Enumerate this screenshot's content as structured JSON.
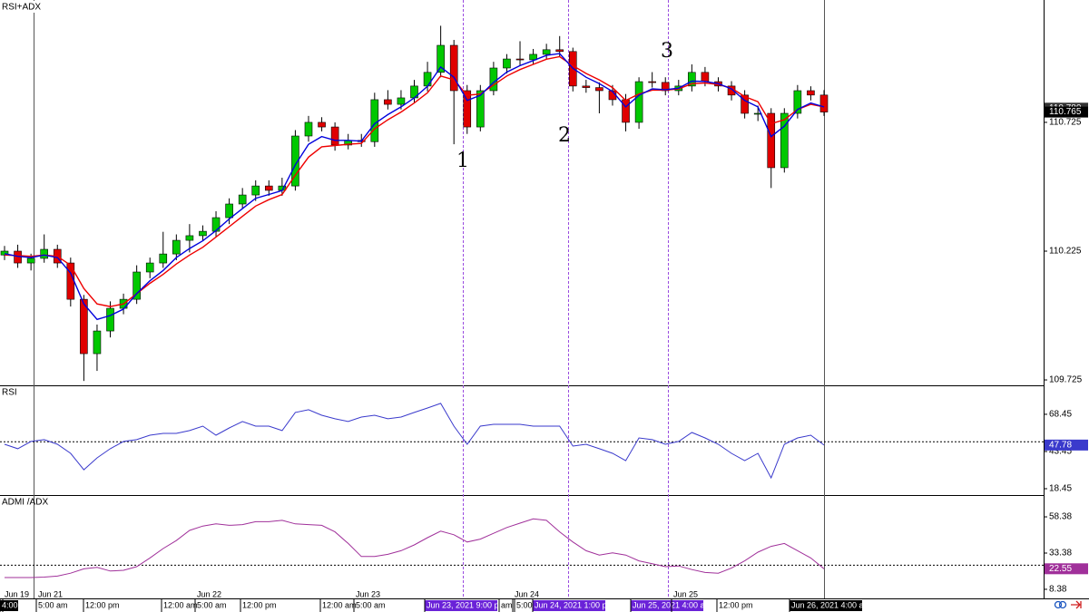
{
  "chart_data": [
    {
      "type": "candlestick",
      "title": "RSI+ADX",
      "open": [
        110.21,
        110.225,
        110.179,
        110.197,
        110.232,
        110.179,
        110.038,
        109.827,
        109.915,
        110.003,
        110.038,
        110.144,
        110.179,
        110.214,
        110.267,
        110.285,
        110.302,
        110.355,
        110.408,
        110.443,
        110.478,
        110.461,
        110.478,
        110.672,
        110.725,
        110.707,
        110.637,
        110.655,
        110.65,
        110.813,
        110.795,
        110.82,
        110.866,
        110.919,
        111.024,
        110.848,
        110.707,
        110.848,
        110.936,
        110.971,
        110.968,
        110.989,
        111.007,
        111.0,
        110.866,
        110.86,
        110.848,
        110.813,
        110.725,
        110.883,
        110.88,
        110.848,
        110.866,
        110.919,
        110.883,
        110.866,
        110.831,
        110.76,
        110.76,
        110.549,
        110.76,
        110.848,
        110.831
      ],
      "high": [
        110.245,
        110.25,
        110.215,
        110.29,
        110.25,
        110.2,
        110.055,
        109.94,
        110.03,
        110.06,
        110.17,
        110.2,
        110.3,
        110.29,
        110.33,
        110.325,
        110.38,
        110.43,
        110.47,
        110.5,
        110.5,
        110.51,
        110.695,
        110.75,
        110.745,
        110.725,
        110.68,
        110.68,
        110.84,
        110.85,
        110.85,
        110.89,
        110.96,
        111.1,
        111.045,
        110.87,
        110.87,
        110.96,
        110.99,
        111.04,
        111.01,
        111.03,
        111.06,
        111.015,
        110.89,
        110.88,
        110.87,
        110.835,
        110.9,
        110.92,
        110.9,
        110.89,
        110.95,
        110.94,
        110.9,
        110.885,
        110.85,
        110.79,
        110.78,
        110.78,
        110.87,
        110.865,
        110.85
      ],
      "low": [
        110.19,
        110.16,
        110.15,
        110.18,
        110.16,
        110.01,
        109.721,
        109.76,
        109.89,
        109.98,
        110.02,
        110.12,
        110.16,
        110.19,
        110.22,
        110.265,
        110.28,
        110.33,
        110.39,
        110.42,
        110.44,
        110.44,
        110.46,
        110.65,
        110.69,
        110.615,
        110.62,
        110.63,
        110.63,
        110.775,
        110.775,
        110.8,
        110.845,
        110.9,
        110.64,
        110.68,
        110.69,
        110.83,
        110.915,
        110.945,
        110.95,
        110.97,
        110.98,
        110.845,
        110.84,
        110.76,
        110.79,
        110.69,
        110.7,
        110.86,
        110.83,
        110.83,
        110.845,
        110.865,
        110.845,
        110.81,
        110.74,
        110.73,
        110.47,
        110.53,
        110.74,
        110.81,
        110.75
      ],
      "close": [
        110.225,
        110.179,
        110.197,
        110.232,
        110.179,
        110.038,
        109.827,
        109.915,
        110.003,
        110.038,
        110.144,
        110.179,
        110.214,
        110.267,
        110.285,
        110.302,
        110.355,
        110.408,
        110.443,
        110.478,
        110.461,
        110.478,
        110.672,
        110.725,
        110.707,
        110.637,
        110.655,
        110.65,
        110.813,
        110.795,
        110.82,
        110.866,
        110.919,
        111.024,
        110.848,
        110.707,
        110.848,
        110.936,
        110.971,
        110.968,
        110.989,
        111.007,
        111.0,
        110.866,
        110.86,
        110.848,
        110.813,
        110.725,
        110.883,
        110.88,
        110.848,
        110.866,
        110.919,
        110.883,
        110.866,
        110.831,
        110.76,
        110.76,
        110.549,
        110.76,
        110.848,
        110.831,
        110.765
      ],
      "up_color": "#00c800",
      "down_color": "#e00000",
      "ma_fast": {
        "color": "#0000dd",
        "values": [
          110.215,
          110.205,
          110.2,
          110.21,
          110.2,
          110.14,
          110.02,
          109.96,
          109.975,
          110.0,
          110.06,
          110.11,
          110.15,
          110.2,
          110.235,
          110.265,
          110.305,
          110.35,
          110.39,
          110.43,
          110.445,
          110.46,
          110.56,
          110.64,
          110.67,
          110.655,
          110.655,
          110.652,
          110.72,
          110.755,
          110.785,
          110.82,
          110.865,
          110.94,
          110.9,
          110.81,
          110.83,
          110.88,
          110.92,
          110.945,
          110.965,
          110.985,
          110.992,
          110.935,
          110.9,
          110.875,
          110.845,
          110.785,
          110.83,
          110.855,
          110.852,
          110.858,
          110.885,
          110.884,
          110.875,
          110.855,
          110.81,
          110.785,
          110.67,
          110.71,
          110.775,
          110.8,
          110.785
        ]
      },
      "ma_slow": {
        "color": "#ee0000",
        "values": [
          110.21,
          110.208,
          110.205,
          110.21,
          110.205,
          110.17,
          110.08,
          110.02,
          110.01,
          110.02,
          110.06,
          110.1,
          110.135,
          110.175,
          110.21,
          110.24,
          110.28,
          110.32,
          110.36,
          110.4,
          110.425,
          110.445,
          110.52,
          110.59,
          110.63,
          110.635,
          110.64,
          110.643,
          110.7,
          110.735,
          110.765,
          110.8,
          110.84,
          110.905,
          110.89,
          110.83,
          110.835,
          110.87,
          110.905,
          110.93,
          110.95,
          110.97,
          110.98,
          110.945,
          110.915,
          110.89,
          110.86,
          110.81,
          110.835,
          110.85,
          110.85,
          110.855,
          110.875,
          110.878,
          110.872,
          110.858,
          110.825,
          110.805,
          110.72,
          110.735,
          110.775,
          110.795,
          110.785
        ]
      },
      "ylim": [
        109.704,
        111.2
      ],
      "yticks": [
        109.725,
        110.225,
        110.725
      ],
      "ask": {
        "value": 110.78,
        "label": "110.780"
      },
      "annotations": [
        "1",
        "2",
        "3"
      ],
      "x_labels": [
        "Jun 19",
        "4:00",
        "Jun 21",
        "5:00 am",
        "12:00 pm",
        "12:00 am",
        "Jun 22",
        "5:00 am",
        "12:00 pm",
        "12:00 am",
        "Jun 23",
        "5:00 am",
        "Jun 23, 2021 9:00 pm",
        "am",
        "Jun 24",
        "5:00 am",
        "Jun 24, 2021 1:00 pm",
        "Jun 25, 2021 4:00 am",
        "Jun 25",
        "12:00 pm",
        "Jun 26, 2021 4:00 am"
      ]
    },
    {
      "type": "line",
      "title": "RSI",
      "color": "#3a3acc",
      "values": [
        48.3,
        45.3,
        50.2,
        51.4,
        48.3,
        42.2,
        31.2,
        39.2,
        45.3,
        50.2,
        51.4,
        54.4,
        55.6,
        55.6,
        57.5,
        60.5,
        54.4,
        59.3,
        63.6,
        60.5,
        60.5,
        57.5,
        69.7,
        71.5,
        67.8,
        65.4,
        63.6,
        66.6,
        67.8,
        65.4,
        66.6,
        69.7,
        72.7,
        75.8,
        60.5,
        48.3,
        60.5,
        61.7,
        61.7,
        61.7,
        60.5,
        60.5,
        60.5,
        47.1,
        48.3,
        45.3,
        42.2,
        37.3,
        52.6,
        51.4,
        48.3,
        50.2,
        56.2,
        52.6,
        48.3,
        42.2,
        37.3,
        42.2,
        25.7,
        48.3,
        52.6,
        54.4,
        47.78
      ],
      "ylim": [
        14.8,
        87.3
      ],
      "yticks": [
        18.45,
        43.45,
        68.45
      ],
      "level": 50
    },
    {
      "type": "line",
      "title": "ADMI /ADX",
      "color": "#a0309a",
      "values": [
        16.5,
        16.5,
        16.5,
        16.8,
        17.5,
        19.5,
        22.5,
        23.5,
        21,
        21.5,
        24,
        30,
        36.5,
        42,
        49,
        52,
        53.5,
        52.5,
        53,
        55,
        55,
        56,
        53.5,
        53,
        52.5,
        48,
        40,
        31,
        31,
        32.5,
        35,
        39,
        44,
        48.5,
        46,
        41,
        43,
        47,
        51,
        54,
        57,
        56,
        48,
        41,
        35,
        32,
        33.5,
        32,
        28,
        26,
        24,
        24.5,
        22,
        20,
        19.5,
        23,
        28,
        34,
        38,
        40,
        35,
        30,
        22.55
      ],
      "ylim": [
        2.1,
        72.8
      ],
      "yticks": [
        8.38,
        33.38,
        58.38
      ],
      "level": 25
    }
  ]
}
